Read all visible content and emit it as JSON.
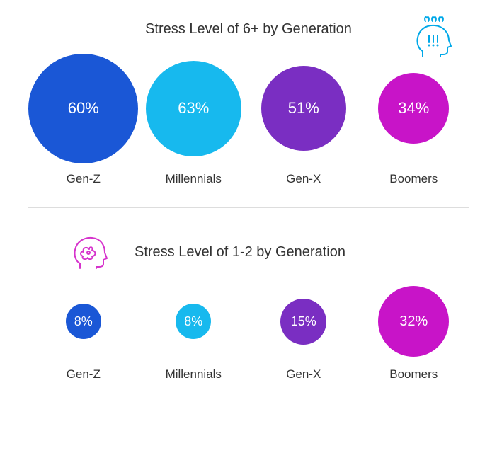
{
  "section1": {
    "title": "Stress Level of 6+ by Generation",
    "title_fontsize": 20,
    "title_color": "#333333",
    "icon_color": "#00a8e8",
    "bubbles": [
      {
        "label": "Gen-Z",
        "value": "60%",
        "diameter": 155,
        "fontsize": 22,
        "color": "#1a57d6"
      },
      {
        "label": "Millennials",
        "value": "63%",
        "diameter": 135,
        "fontsize": 22,
        "color": "#17b9ee"
      },
      {
        "label": "Gen-X",
        "value": "51%",
        "diameter": 120,
        "fontsize": 22,
        "color": "#7a2ec2"
      },
      {
        "label": "Boomers",
        "value": "34%",
        "diameter": 100,
        "fontsize": 22,
        "color": "#c814c8"
      }
    ]
  },
  "divider_color": "#dddddd",
  "section2": {
    "title": "Stress Level of 1-2 by Generation",
    "title_fontsize": 20,
    "title_color": "#333333",
    "icon_color": "#d633cc",
    "bubbles": [
      {
        "label": "Gen-Z",
        "value": "8%",
        "diameter": 50,
        "fontsize": 18,
        "color": "#1a57d6"
      },
      {
        "label": "Millennials",
        "value": "8%",
        "diameter": 50,
        "fontsize": 18,
        "color": "#17b9ee"
      },
      {
        "label": "Gen-X",
        "value": "15%",
        "diameter": 65,
        "fontsize": 18,
        "color": "#7a2ec2"
      },
      {
        "label": "Boomers",
        "value": "32%",
        "diameter": 100,
        "fontsize": 20,
        "color": "#c814c8"
      }
    ]
  },
  "label_fontsize": 17,
  "label_color": "#333333",
  "background_color": "#ffffff"
}
